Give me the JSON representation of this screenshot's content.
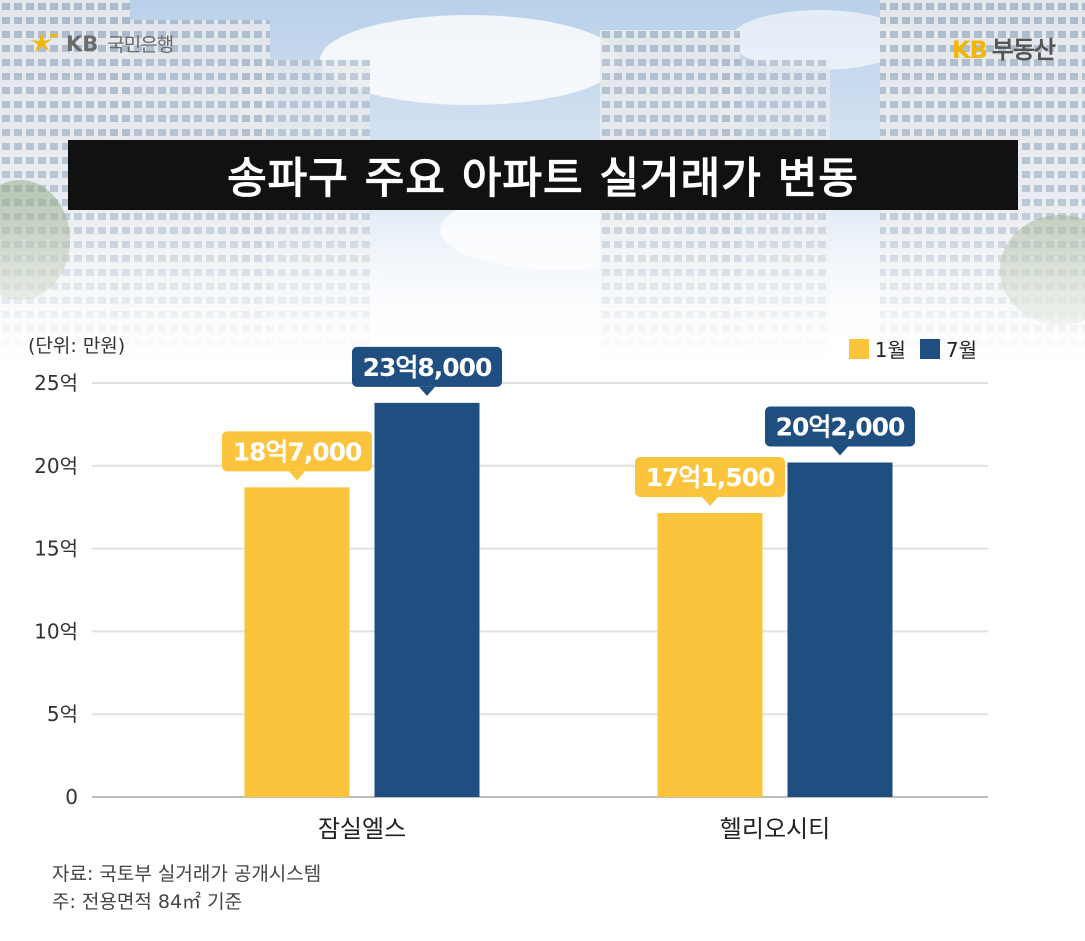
{
  "brand": {
    "bank_kb": "KB",
    "bank_name": "국민은행",
    "realestate_kb": "KB",
    "realestate_name": "부동산"
  },
  "title": "송파구 주요 아파트 실거래가 변동",
  "unit_label": "(단위: 만원)",
  "colors": {
    "jan": "#fcc33d",
    "jul": "#1f4e80",
    "title_bg": "#111111"
  },
  "chart_data": {
    "type": "bar",
    "categories": [
      "잠실엘스",
      "헬리오시티"
    ],
    "series": [
      {
        "name": "1월",
        "values": [
          187000,
          171500
        ],
        "labels": [
          "18억7,000",
          "17억1,500"
        ]
      },
      {
        "name": "7월",
        "values": [
          238000,
          202000
        ],
        "labels": [
          "23억8,000",
          "20억2,000"
        ]
      }
    ],
    "ylim": [
      0,
      250000
    ],
    "yticks": [
      {
        "value": 0,
        "label": "0"
      },
      {
        "value": 50000,
        "label": "5억"
      },
      {
        "value": 100000,
        "label": "10억"
      },
      {
        "value": 150000,
        "label": "15억"
      },
      {
        "value": 200000,
        "label": "20억"
      },
      {
        "value": 250000,
        "label": "25억"
      }
    ],
    "grid": true,
    "legend": "top-right"
  },
  "footer": {
    "source": "자료: 국토부 실거래가 공개시스템",
    "note": "주: 전용면적 84㎡ 기준"
  }
}
